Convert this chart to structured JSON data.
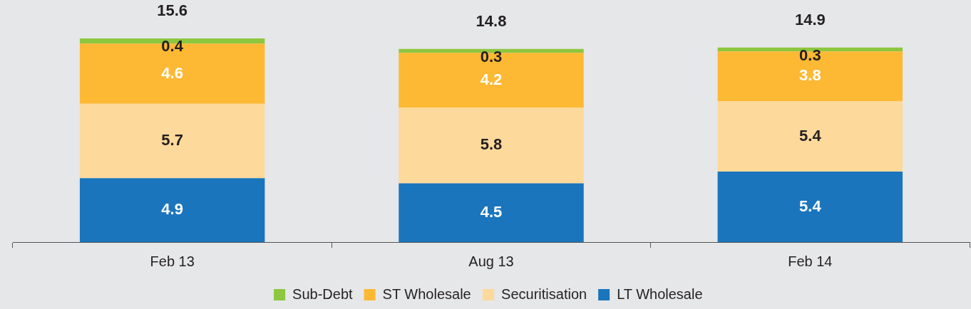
{
  "chart_data": {
    "type": "bar",
    "stacked": true,
    "relative": false,
    "data_labels": true,
    "legend": "bottom",
    "grid": false,
    "categories": [
      "Feb 13",
      "Aug 13",
      "Feb 14"
    ],
    "series": [
      {
        "name": "LT Wholesale",
        "color": "#1a75bc",
        "values": [
          4.9,
          4.5,
          5.4
        ]
      },
      {
        "name": "Securitisation",
        "color": "#fdd99b",
        "values": [
          5.7,
          5.8,
          5.4
        ]
      },
      {
        "name": "ST Wholesale",
        "color": "#fdb933",
        "values": [
          4.6,
          4.2,
          3.8
        ]
      },
      {
        "name": "Sub-Debt",
        "color": "#8dc63f",
        "values": [
          0.4,
          0.3,
          0.3
        ]
      }
    ],
    "totals": [
      "15.6",
      "14.8",
      "14.9"
    ]
  }
}
